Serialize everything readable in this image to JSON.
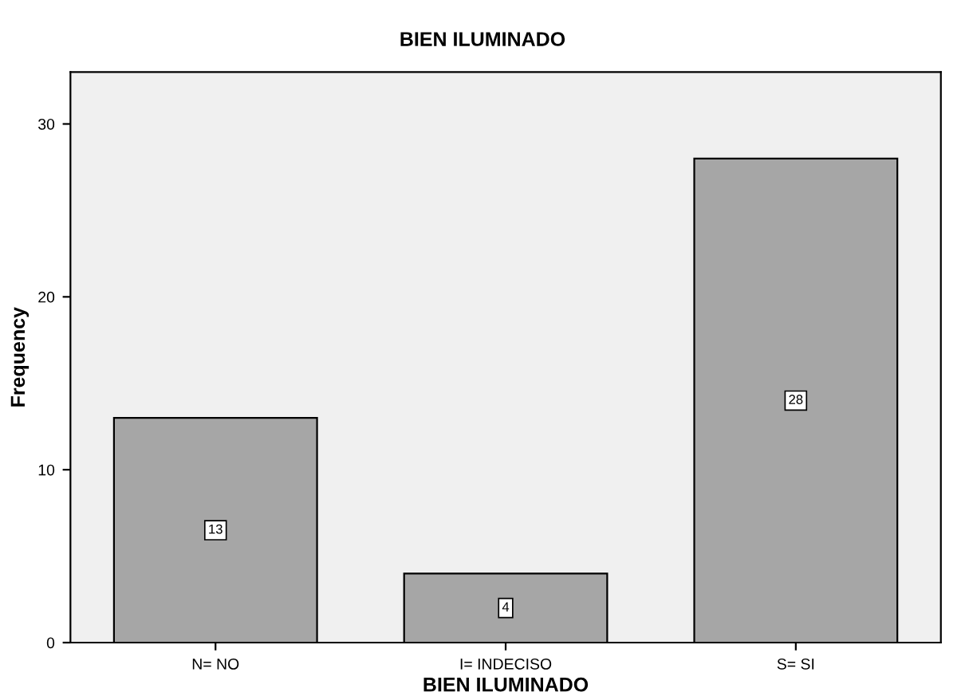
{
  "chart_data": {
    "type": "bar",
    "title": "BIEN ILUMINADO",
    "xlabel": "BIEN ILUMINADO",
    "ylabel": "Frequency",
    "categories": [
      "N= NO",
      "I= INDECISO",
      "S= SI"
    ],
    "values": [
      13,
      4,
      28
    ],
    "color": "#a6a6a6",
    "ylim": [
      0,
      33
    ],
    "yticks": [
      0,
      10,
      20,
      30
    ],
    "data_labels": true,
    "grid": false,
    "legend": false
  }
}
